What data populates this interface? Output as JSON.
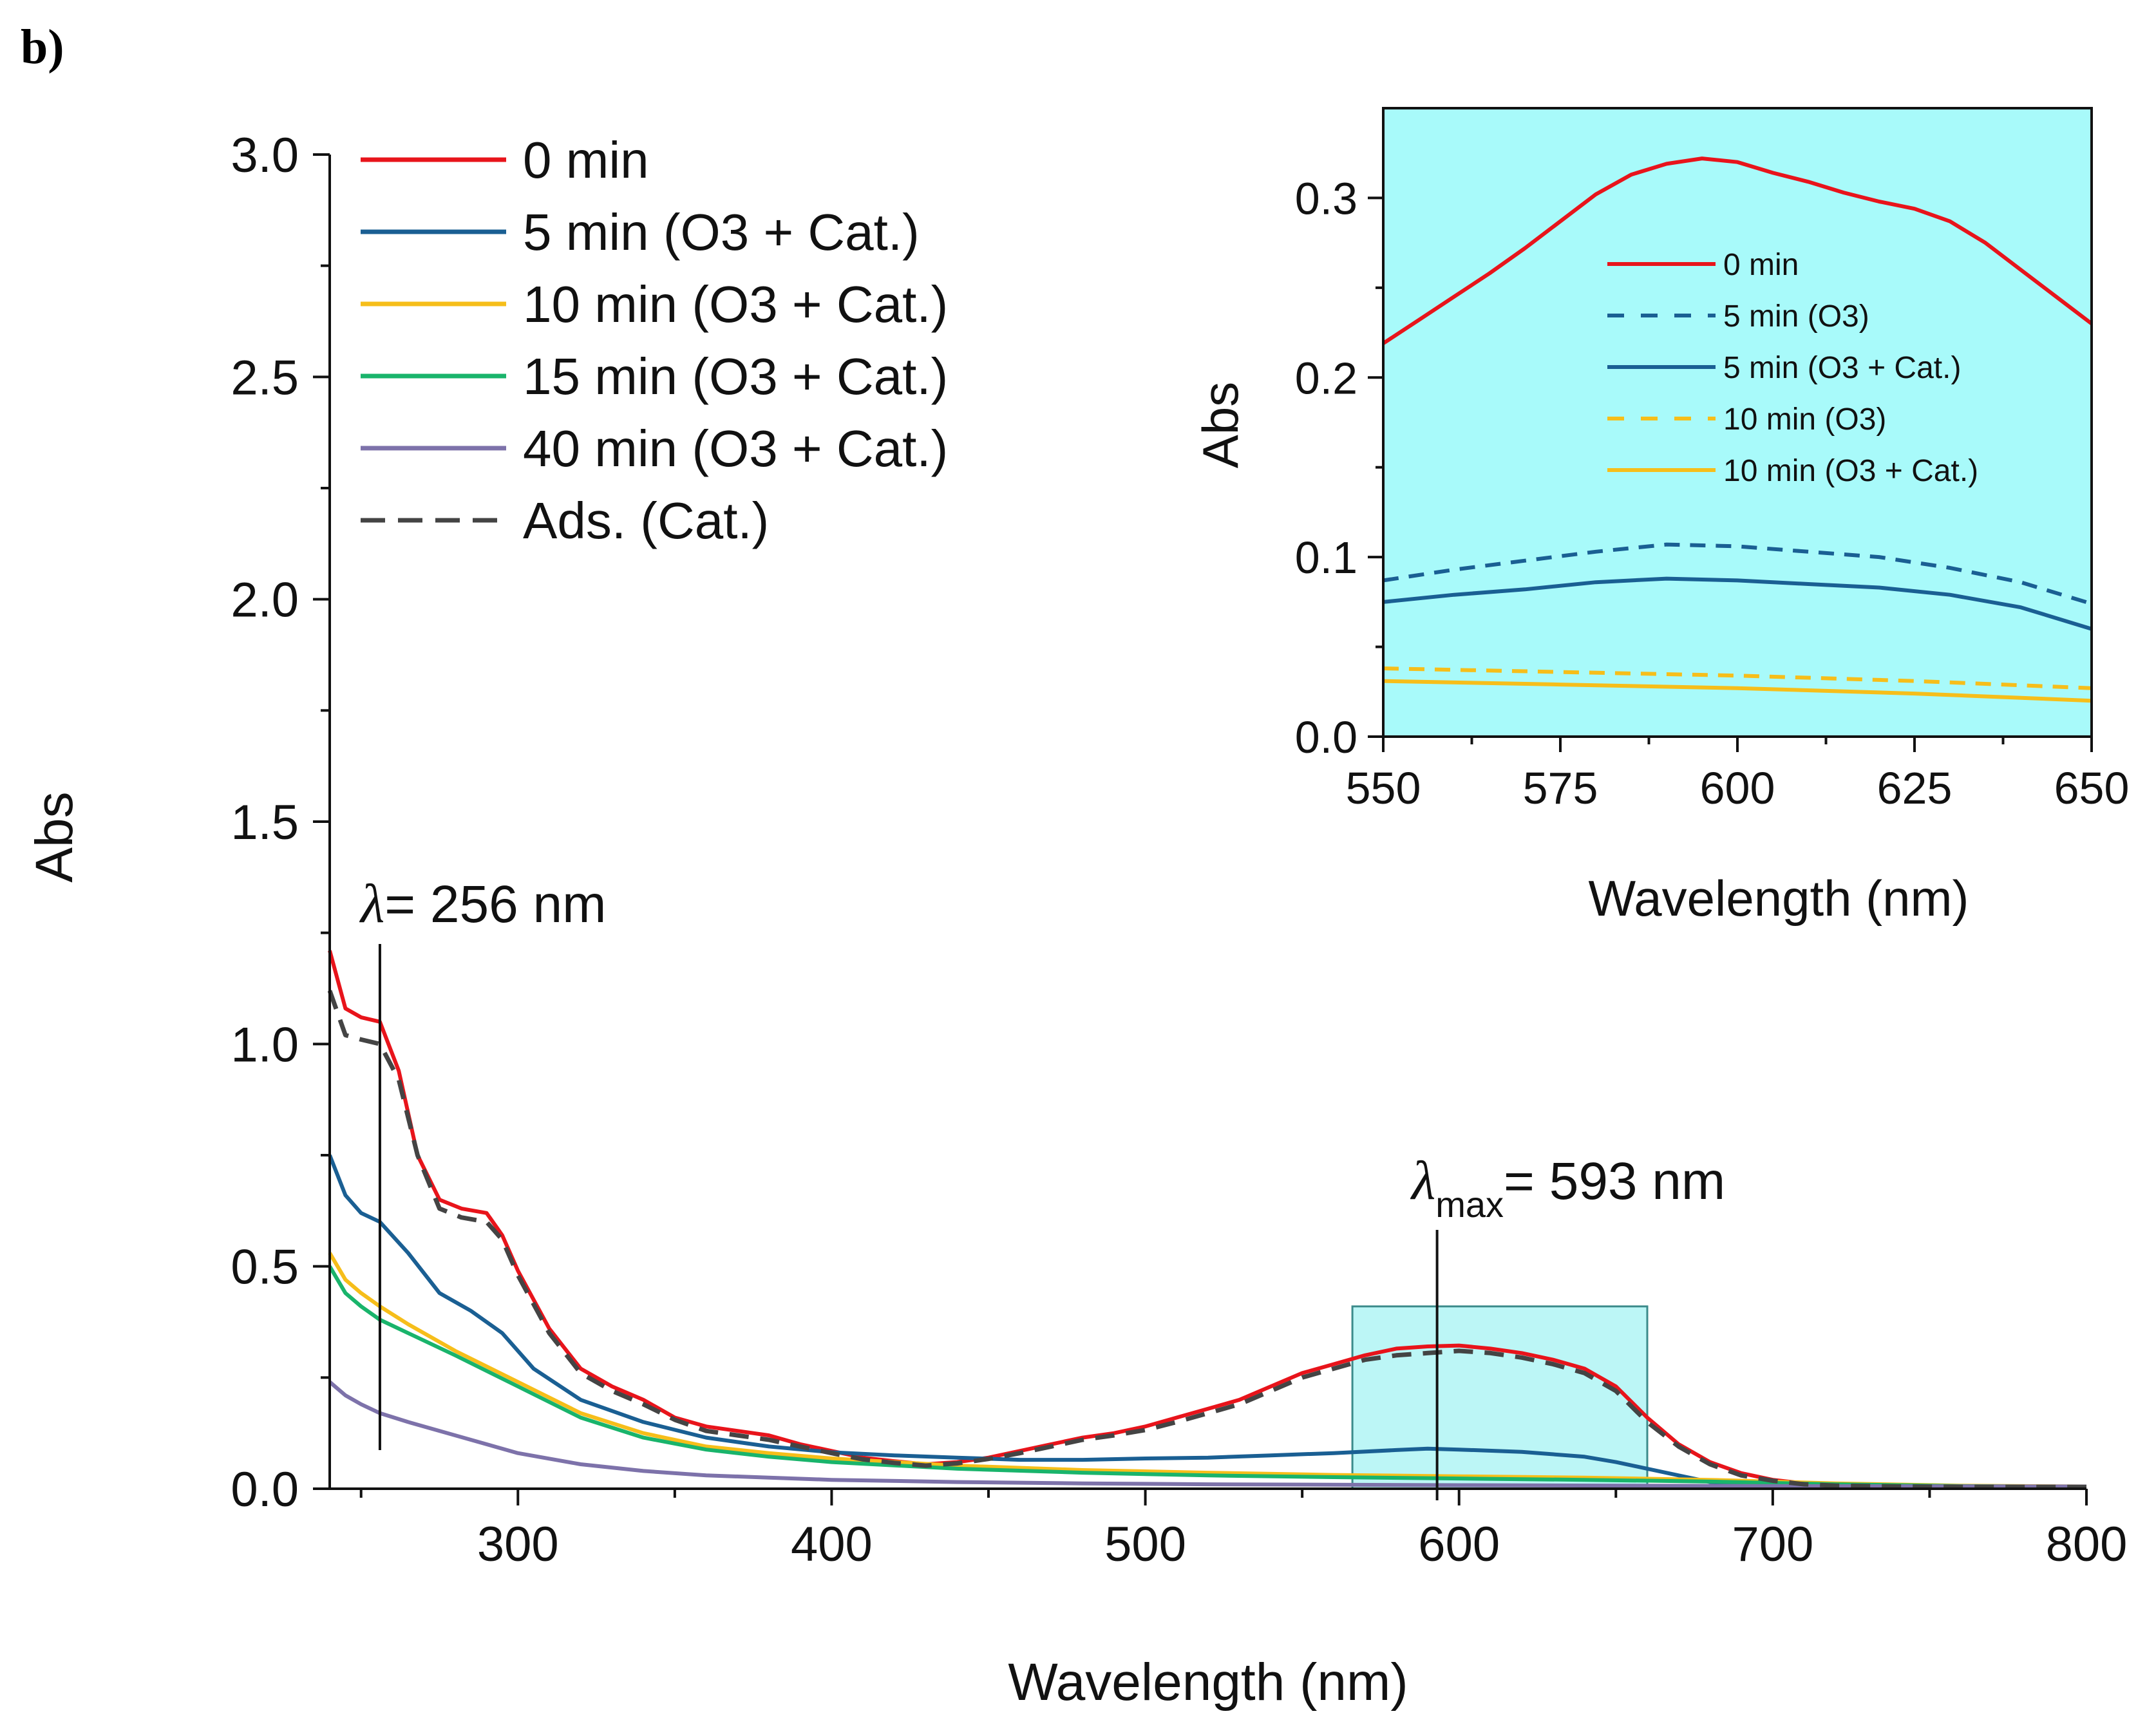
{
  "panel_label": "b)",
  "chart_data": [
    {
      "type": "line",
      "name": "main",
      "xlabel": "Wavelength (nm)",
      "ylabel": "Abs",
      "xlim": [
        240,
        800
      ],
      "ylim": [
        0,
        3.0
      ],
      "x_ticks": [
        "300",
        "400",
        "500",
        "600",
        "700",
        "800"
      ],
      "y_ticks": [
        "0.0",
        "0.5",
        "1.0",
        "1.5",
        "2.0",
        "2.5",
        "3.0"
      ],
      "colors": {
        "red": "#e8141b",
        "blue": "#1a5f93",
        "yellow": "#f6be1a",
        "green": "#19b46b",
        "purple": "#7d72aa",
        "dash": "#444444",
        "highlight": "#8ff0f0"
      },
      "legend": [
        {
          "label": "0 min",
          "style": "solid",
          "color": "#e8141b"
        },
        {
          "label": "5 min (O3 + Cat.)",
          "style": "solid",
          "color": "#1a5f93"
        },
        {
          "label": "10 min (O3 + Cat.)",
          "style": "solid",
          "color": "#f6be1a"
        },
        {
          "label": "15 min (O3 + Cat.)",
          "style": "solid",
          "color": "#19b46b"
        },
        {
          "label": "40 min (O3 + Cat.)",
          "style": "solid",
          "color": "#7d72aa"
        },
        {
          "label": "Ads. (Cat.)",
          "style": "dashed",
          "color": "#444444"
        }
      ],
      "annotations": {
        "lambda_symbol": "λ",
        "lambda_256_text": "= 256 nm",
        "lambda_max_sub": "max",
        "lambda_593_text": "= 593 nm",
        "lambda_256_x": 256,
        "lambda_593_x": 593,
        "highlight_x": [
          566,
          660
        ],
        "highlight_y": [
          0,
          0.41
        ]
      },
      "series": [
        {
          "name": "0 min",
          "color": "#e8141b",
          "dash": false,
          "x": [
            240,
            245,
            250,
            256,
            262,
            268,
            275,
            282,
            290,
            295,
            300,
            310,
            320,
            330,
            340,
            350,
            360,
            370,
            380,
            390,
            400,
            410,
            420,
            430,
            440,
            450,
            460,
            470,
            480,
            490,
            500,
            510,
            520,
            530,
            540,
            550,
            560,
            570,
            580,
            590,
            600,
            610,
            620,
            630,
            640,
            650,
            660,
            670,
            680,
            690,
            700,
            710,
            720,
            740,
            760,
            780,
            800
          ],
          "y": [
            1.21,
            1.08,
            1.06,
            1.05,
            0.94,
            0.75,
            0.65,
            0.63,
            0.62,
            0.57,
            0.49,
            0.36,
            0.27,
            0.23,
            0.2,
            0.16,
            0.14,
            0.13,
            0.12,
            0.1,
            0.085,
            0.07,
            0.062,
            0.055,
            0.06,
            0.07,
            0.085,
            0.1,
            0.115,
            0.125,
            0.14,
            0.16,
            0.18,
            0.2,
            0.23,
            0.26,
            0.28,
            0.3,
            0.315,
            0.32,
            0.322,
            0.315,
            0.305,
            0.29,
            0.27,
            0.23,
            0.16,
            0.1,
            0.06,
            0.035,
            0.02,
            0.012,
            0.008,
            0.005,
            0.004,
            0.004,
            0.004
          ]
        },
        {
          "name": "5 min (O3 + Cat.)",
          "color": "#1a5f93",
          "dash": false,
          "x": [
            240,
            245,
            250,
            256,
            265,
            275,
            285,
            295,
            305,
            320,
            340,
            360,
            380,
            400,
            420,
            440,
            460,
            480,
            500,
            520,
            540,
            560,
            580,
            590,
            600,
            620,
            640,
            650,
            660,
            670,
            680,
            700,
            720,
            760,
            800
          ],
          "y": [
            0.75,
            0.66,
            0.62,
            0.6,
            0.53,
            0.44,
            0.4,
            0.35,
            0.27,
            0.2,
            0.15,
            0.115,
            0.095,
            0.082,
            0.075,
            0.07,
            0.065,
            0.065,
            0.068,
            0.07,
            0.075,
            0.08,
            0.087,
            0.09,
            0.088,
            0.083,
            0.072,
            0.06,
            0.045,
            0.03,
            0.015,
            0.008,
            0.005,
            0.003,
            0.003
          ]
        },
        {
          "name": "10 min (O3 + Cat.)",
          "color": "#f6be1a",
          "dash": false,
          "x": [
            240,
            245,
            250,
            256,
            265,
            280,
            300,
            320,
            340,
            360,
            380,
            400,
            440,
            480,
            520,
            560,
            600,
            640,
            680,
            720,
            760,
            800
          ],
          "y": [
            0.53,
            0.47,
            0.44,
            0.41,
            0.37,
            0.31,
            0.24,
            0.17,
            0.125,
            0.095,
            0.08,
            0.068,
            0.052,
            0.042,
            0.036,
            0.031,
            0.028,
            0.025,
            0.02,
            0.012,
            0.007,
            0.005
          ]
        },
        {
          "name": "15 min (O3 + Cat.)",
          "color": "#19b46b",
          "dash": false,
          "x": [
            240,
            245,
            250,
            256,
            265,
            280,
            300,
            320,
            340,
            360,
            380,
            400,
            440,
            480,
            520,
            560,
            600,
            640,
            680,
            720,
            760,
            800
          ],
          "y": [
            0.5,
            0.44,
            0.41,
            0.38,
            0.35,
            0.3,
            0.23,
            0.16,
            0.115,
            0.088,
            0.072,
            0.06,
            0.045,
            0.036,
            0.03,
            0.026,
            0.023,
            0.02,
            0.016,
            0.01,
            0.006,
            0.004
          ]
        },
        {
          "name": "40 min (O3 + Cat.)",
          "color": "#7d72aa",
          "dash": false,
          "x": [
            240,
            245,
            250,
            256,
            265,
            280,
            300,
            320,
            340,
            360,
            380,
            400,
            440,
            480,
            520,
            600,
            700,
            800
          ],
          "y": [
            0.24,
            0.21,
            0.19,
            0.17,
            0.15,
            0.12,
            0.08,
            0.055,
            0.04,
            0.03,
            0.025,
            0.02,
            0.015,
            0.012,
            0.01,
            0.008,
            0.006,
            0.005
          ]
        },
        {
          "name": "Ads. (Cat.)",
          "color": "#444444",
          "dash": true,
          "x": [
            240,
            245,
            250,
            256,
            262,
            268,
            275,
            282,
            290,
            295,
            300,
            310,
            320,
            330,
            340,
            350,
            360,
            370,
            380,
            390,
            400,
            410,
            420,
            430,
            440,
            450,
            460,
            470,
            480,
            490,
            500,
            510,
            520,
            530,
            540,
            550,
            560,
            570,
            580,
            590,
            600,
            610,
            620,
            630,
            640,
            650,
            660,
            670,
            680,
            690,
            700,
            710,
            720,
            740,
            760,
            780,
            800
          ],
          "y": [
            1.12,
            1.02,
            1.01,
            1.0,
            0.92,
            0.75,
            0.63,
            0.61,
            0.6,
            0.56,
            0.48,
            0.35,
            0.26,
            0.22,
            0.19,
            0.155,
            0.13,
            0.12,
            0.11,
            0.095,
            0.08,
            0.066,
            0.058,
            0.052,
            0.057,
            0.067,
            0.08,
            0.095,
            0.11,
            0.12,
            0.132,
            0.15,
            0.17,
            0.19,
            0.22,
            0.25,
            0.27,
            0.29,
            0.3,
            0.305,
            0.31,
            0.305,
            0.295,
            0.28,
            0.26,
            0.22,
            0.15,
            0.095,
            0.055,
            0.03,
            0.018,
            0.01,
            0.007,
            0.005,
            0.004,
            0.004,
            0.004
          ]
        }
      ]
    },
    {
      "type": "line",
      "name": "inset",
      "xlabel": "Wavelength (nm)",
      "ylabel": "Abs",
      "xlim": [
        550,
        650
      ],
      "ylim": [
        0,
        0.35
      ],
      "x_ticks": [
        "550",
        "575",
        "600",
        "625",
        "650"
      ],
      "y_ticks": [
        "0.0",
        "0.1",
        "0.2",
        "0.3"
      ],
      "background": "#a8fafa",
      "legend": [
        {
          "label": "0 min",
          "style": "solid",
          "color": "#e8141b"
        },
        {
          "label": "5 min (O3)",
          "style": "dashed",
          "color": "#1a5f93"
        },
        {
          "label": "5 min (O3 + Cat.)",
          "style": "solid",
          "color": "#1a5f93"
        },
        {
          "label": "10 min (O3)",
          "style": "dashed",
          "color": "#f6be1a"
        },
        {
          "label": "10 min (O3 + Cat.)",
          "style": "solid",
          "color": "#f6be1a"
        }
      ],
      "series": [
        {
          "name": "0 min",
          "color": "#e8141b",
          "dash": false,
          "x": [
            550,
            555,
            560,
            565,
            570,
            575,
            580,
            585,
            590,
            595,
            600,
            605,
            610,
            615,
            620,
            625,
            630,
            635,
            640,
            645,
            650
          ],
          "y": [
            0.219,
            0.232,
            0.245,
            0.258,
            0.272,
            0.287,
            0.302,
            0.313,
            0.319,
            0.322,
            0.32,
            0.314,
            0.309,
            0.303,
            0.298,
            0.294,
            0.287,
            0.275,
            0.26,
            0.245,
            0.23
          ]
        },
        {
          "name": "5 min (O3)",
          "color": "#1a5f93",
          "dash": true,
          "x": [
            550,
            560,
            570,
            580,
            590,
            600,
            610,
            620,
            630,
            640,
            650
          ],
          "y": [
            0.087,
            0.093,
            0.098,
            0.103,
            0.107,
            0.106,
            0.103,
            0.1,
            0.094,
            0.086,
            0.074
          ]
        },
        {
          "name": "5 min (O3 + Cat.)",
          "color": "#1a5f93",
          "dash": false,
          "x": [
            550,
            560,
            570,
            580,
            590,
            600,
            610,
            620,
            630,
            640,
            650
          ],
          "y": [
            0.075,
            0.079,
            0.082,
            0.086,
            0.088,
            0.087,
            0.085,
            0.083,
            0.079,
            0.072,
            0.06
          ]
        },
        {
          "name": "10 min (O3)",
          "color": "#f6be1a",
          "dash": true,
          "x": [
            550,
            575,
            600,
            625,
            650
          ],
          "y": [
            0.038,
            0.036,
            0.034,
            0.031,
            0.027
          ]
        },
        {
          "name": "10 min (O3 + Cat.)",
          "color": "#f6be1a",
          "dash": false,
          "x": [
            550,
            575,
            600,
            625,
            650
          ],
          "y": [
            0.031,
            0.029,
            0.027,
            0.024,
            0.02
          ]
        }
      ]
    }
  ]
}
